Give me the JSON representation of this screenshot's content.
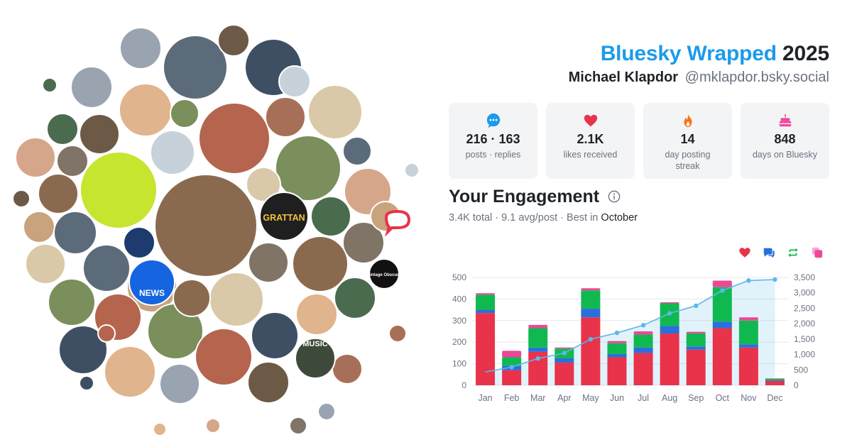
{
  "header": {
    "brand": "Bluesky Wrapped",
    "year": "2025",
    "name": "Michael Klapdor",
    "handle": "@mklapdor.bsky.social"
  },
  "stats": [
    {
      "icon": "speech-bubble-icon",
      "value": "216 · 163",
      "label": "posts · replies"
    },
    {
      "icon": "heart-icon",
      "value": "2.1K",
      "label": "likes received"
    },
    {
      "icon": "flame-icon",
      "value": "14",
      "label": "day posting streak"
    },
    {
      "icon": "cake-icon",
      "value": "848",
      "label": "days on Bluesky"
    }
  ],
  "engagement": {
    "title": "Your Engagement",
    "total": "3.4K total",
    "avg": "9.1 avg/post",
    "best_prefix": "Best in",
    "best_month": "October"
  },
  "legend": [
    {
      "icon": "likes-heart-icon",
      "color": "#e8334a"
    },
    {
      "icon": "replies-bubble-icon",
      "color": "#2a6fdb"
    },
    {
      "icon": "reposts-icon",
      "color": "#10b950"
    },
    {
      "icon": "quotes-icon",
      "color": "#ec4899"
    }
  ],
  "avatar_cloud": {
    "count": 60,
    "badges": [
      "NEWS",
      "GRATTAN",
      "MUSIC",
      "Vintage Obscura"
    ]
  },
  "colors": {
    "brand": "#1b9bea",
    "likes": "#e8334a",
    "replies": "#2a6fdb",
    "reposts": "#10b950",
    "quotes": "#ec4899",
    "cumulative": "#5cb8ea"
  },
  "chart_data": {
    "type": "bar",
    "stacked": true,
    "categories": [
      "Jan",
      "Feb",
      "Mar",
      "Apr",
      "May",
      "Jun",
      "Jul",
      "Aug",
      "Sep",
      "Oct",
      "Nov",
      "Dec"
    ],
    "series": [
      {
        "values": [
          335,
          70,
          155,
          105,
          315,
          130,
          150,
          240,
          165,
          265,
          175,
          20
        ]
      },
      {
        "values": [
          15,
          20,
          20,
          20,
          40,
          15,
          25,
          35,
          15,
          30,
          15,
          3
        ]
      },
      {
        "values": [
          70,
          40,
          90,
          45,
          85,
          50,
          60,
          105,
          60,
          160,
          110,
          7
        ]
      },
      {
        "values": [
          7,
          30,
          15,
          5,
          10,
          10,
          15,
          5,
          8,
          30,
          15,
          2
        ]
      }
    ],
    "cumulative": [
      430,
      590,
      870,
      1045,
      1495,
      1700,
      1950,
      2335,
      2580,
      3075,
      3400,
      3430
    ],
    "ylim": [
      0,
      500
    ],
    "yticks": [
      0,
      100,
      200,
      300,
      400,
      500
    ],
    "y2lim": [
      0,
      3500
    ],
    "y2ticks": [
      "0",
      "500",
      "1,000",
      "1,500",
      "2,000",
      "2,500",
      "3,000",
      "3,500"
    ],
    "grid": true
  }
}
